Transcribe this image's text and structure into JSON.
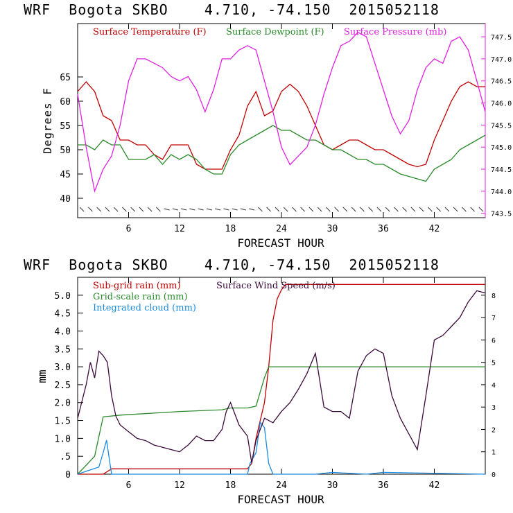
{
  "header": {
    "model": "WRF",
    "station": "Bogota SKBO",
    "coords": "4.710, -74.150",
    "init": "2015052118"
  },
  "colors": {
    "temperature": "#c00000",
    "dewpoint": "#2a8a2a",
    "pressure": "#e020e0",
    "subgrid": "#c00000",
    "gridscale": "#2a8a2a",
    "cloud": "#1a8ae0",
    "wind": "#3a0a3a"
  },
  "chart_data": [
    {
      "type": "line",
      "title": "WRF Bogota SKBO 4.710, -74.150 2015052118",
      "xlabel": "FORECAST HOUR",
      "ylabel": "Degrees F",
      "xlim": [
        0,
        48
      ],
      "ylim": [
        36,
        76
      ],
      "y2lim": [
        743.4,
        747.8
      ],
      "x_ticks": [
        6,
        12,
        18,
        24,
        30,
        36,
        42
      ],
      "y_ticks": [
        40,
        45,
        50,
        55,
        60,
        65
      ],
      "y2_ticks": [
        "743.5",
        "744.0",
        "744.5",
        "745.0",
        "745.5",
        "746.0",
        "746.5",
        "747.0",
        "747.5"
      ],
      "legend": [
        "Surface Temperature (F)",
        "Surface Dewpoint (F)",
        "Surface Pressure (mb)"
      ],
      "series": [
        {
          "name": "Surface Temperature (F)",
          "axis": "left",
          "x": [
            0,
            1,
            2,
            3,
            4,
            5,
            6,
            7,
            8,
            9,
            10,
            11,
            12,
            13,
            14,
            15,
            16,
            17,
            18,
            19,
            20,
            21,
            22,
            23,
            24,
            25,
            26,
            27,
            28,
            29,
            30,
            31,
            32,
            33,
            34,
            35,
            36,
            37,
            38,
            39,
            40,
            41,
            42,
            43,
            44,
            45,
            46,
            47,
            48
          ],
          "values": [
            62,
            64,
            62,
            57,
            56,
            52,
            52,
            51,
            51,
            49,
            48,
            51,
            51,
            51,
            47,
            46,
            46,
            46,
            50,
            53,
            59,
            62,
            57,
            58,
            62,
            63.5,
            62,
            59,
            55,
            51,
            50,
            51,
            52,
            52,
            51,
            50,
            50,
            49,
            48,
            47,
            46.5,
            47,
            52,
            56,
            60,
            63,
            64,
            63,
            63
          ]
        },
        {
          "name": "Surface Dewpoint (F)",
          "axis": "left",
          "x": [
            0,
            1,
            2,
            3,
            4,
            5,
            6,
            7,
            8,
            9,
            10,
            11,
            12,
            13,
            14,
            15,
            16,
            17,
            18,
            19,
            20,
            21,
            22,
            23,
            24,
            25,
            26,
            27,
            28,
            29,
            30,
            31,
            32,
            33,
            34,
            35,
            36,
            37,
            38,
            39,
            40,
            41,
            42,
            43,
            44,
            45,
            46,
            47,
            48
          ],
          "values": [
            51,
            51,
            50,
            52,
            51,
            51,
            48,
            48,
            48,
            49,
            47,
            49,
            48,
            49,
            48,
            46,
            45,
            45,
            49,
            51,
            52,
            53,
            54,
            55,
            54,
            54,
            53,
            52,
            52,
            51,
            50,
            50,
            49,
            48,
            48,
            47,
            47,
            46,
            45,
            44.5,
            44,
            43.5,
            46,
            47,
            48,
            50,
            51,
            52,
            53
          ]
        },
        {
          "name": "Surface Pressure (mb)",
          "axis": "right",
          "x": [
            0,
            1,
            2,
            3,
            4,
            5,
            6,
            7,
            8,
            9,
            10,
            11,
            12,
            13,
            14,
            15,
            16,
            17,
            18,
            19,
            20,
            21,
            22,
            23,
            24,
            25,
            26,
            27,
            28,
            29,
            30,
            31,
            32,
            33,
            34,
            35,
            36,
            37,
            38,
            39,
            40,
            41,
            42,
            43,
            44,
            45,
            46,
            47,
            48
          ],
          "values": [
            746.2,
            745.0,
            744.0,
            744.5,
            744.8,
            745.5,
            746.5,
            747.0,
            747.0,
            746.9,
            746.8,
            746.6,
            746.5,
            746.6,
            746.3,
            745.8,
            746.3,
            747.0,
            747.0,
            747.2,
            747.3,
            747.2,
            746.5,
            745.8,
            745.0,
            744.6,
            744.8,
            745.0,
            745.5,
            746.2,
            746.8,
            747.3,
            747.4,
            747.6,
            747.5,
            746.9,
            746.3,
            745.7,
            745.3,
            745.6,
            746.3,
            746.8,
            747.0,
            746.9,
            747.4,
            747.5,
            747.2,
            746.5,
            745.8
          ]
        }
      ],
      "wind_barbs": true
    },
    {
      "type": "line",
      "title": "WRF Bogota SKBO 4.710, -74.150 2015052118",
      "xlabel": "FORECAST HOUR",
      "ylabel": "mm",
      "xlim": [
        0,
        48
      ],
      "ylim": [
        0,
        5.5
      ],
      "y2lim": [
        0,
        8.8
      ],
      "x_ticks": [
        6,
        12,
        18,
        24,
        30,
        36,
        42
      ],
      "y_ticks": [
        "0",
        ".5",
        "1.0",
        "1.5",
        "2.0",
        "2.5",
        "3.0",
        "3.5",
        "4.0",
        "4.5",
        "5.0"
      ],
      "y2_ticks": [
        "0",
        "1",
        "2",
        "3",
        "4",
        "5",
        "6",
        "7",
        "8"
      ],
      "legend": [
        "Sub-grid rain (mm)",
        "Surface Wind Speed (m/s)",
        "Grid-scale rain (mm)",
        "Integrated cloud (mm)"
      ],
      "series": [
        {
          "name": "Sub-grid rain (mm)",
          "axis": "left",
          "x": [
            0,
            3,
            4,
            20,
            20.5,
            21,
            22,
            22.5,
            23,
            23.5,
            24,
            24.5,
            48
          ],
          "values": [
            0,
            0,
            0.15,
            0.15,
            0.3,
            1.0,
            2.0,
            3.0,
            4.3,
            4.9,
            5.15,
            5.3,
            5.3
          ]
        },
        {
          "name": "Grid-scale rain (mm)",
          "axis": "left",
          "x": [
            0,
            2,
            3,
            5,
            12,
            17,
            18,
            20,
            21,
            22,
            22.5,
            23,
            48
          ],
          "values": [
            0,
            0.5,
            1.6,
            1.65,
            1.75,
            1.8,
            1.85,
            1.85,
            1.9,
            2.7,
            3.0,
            3.0,
            3.0
          ]
        },
        {
          "name": "Integrated cloud (mm)",
          "axis": "left",
          "x": [
            0,
            2.5,
            3,
            3.4,
            3.8,
            4,
            20,
            20.3,
            21,
            21.5,
            22,
            22.5,
            23,
            24,
            28,
            30,
            34,
            36,
            48
          ],
          "values": [
            0,
            0.2,
            0.6,
            0.95,
            0.3,
            0,
            0,
            0.3,
            0.6,
            1.45,
            1.3,
            0.3,
            0,
            0,
            0,
            0.05,
            0,
            0.05,
            0
          ]
        },
        {
          "name": "Surface Wind Speed (m/s)",
          "axis": "right",
          "x": [
            0,
            1,
            1.5,
            2,
            2.5,
            3,
            3.5,
            4,
            4.5,
            5,
            6,
            7,
            8,
            9,
            10,
            11,
            12,
            13,
            14,
            15,
            16,
            17,
            17.5,
            18,
            19,
            20,
            20.5,
            21,
            22,
            23,
            24,
            25,
            26,
            27,
            28,
            29,
            30,
            31,
            32,
            33,
            34,
            35,
            36,
            37,
            38,
            39,
            40,
            41,
            42,
            43,
            44,
            45,
            46,
            47,
            48
          ],
          "values": [
            2.5,
            4,
            5,
            4.3,
            5.5,
            5.3,
            5,
            3.5,
            2.6,
            2.2,
            1.9,
            1.6,
            1.5,
            1.3,
            1.2,
            1.1,
            1.0,
            1.3,
            1.7,
            1.5,
            1.5,
            2,
            2.8,
            3.2,
            2.2,
            1.7,
            0.5,
            1.5,
            2.5,
            2.3,
            2.8,
            3.2,
            3.8,
            4.5,
            5.4,
            3,
            2.8,
            2.8,
            2.5,
            4.6,
            5.3,
            5.6,
            5.4,
            3.5,
            2.5,
            1.8,
            1.1,
            3.5,
            6,
            6.2,
            6.6,
            7.0,
            7.7,
            8.2,
            8.1
          ]
        }
      ]
    }
  ]
}
